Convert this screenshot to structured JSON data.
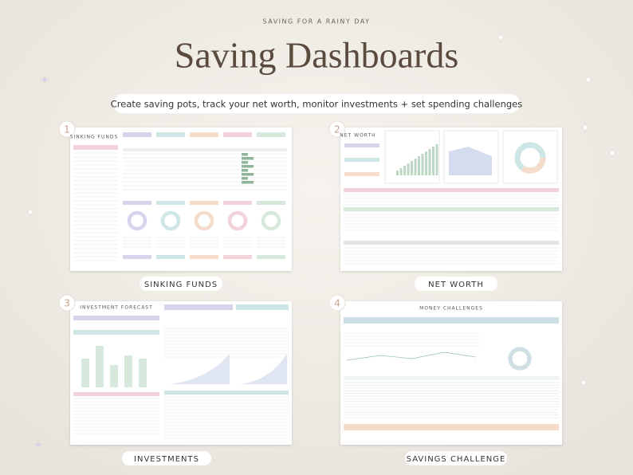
{
  "header": {
    "eyebrow": "SAVING FOR A RAINY DAY",
    "title": "Saving Dashboards",
    "subtitle": "Create saving pots, track your net worth, monitor investments + set spending challenges"
  },
  "panels": [
    {
      "number": "1",
      "label": "SINKING FUNDS",
      "sheet_title": "SINKING FUNDS"
    },
    {
      "number": "2",
      "label": "NET WORTH",
      "sheet_title": "NET WORTH"
    },
    {
      "number": "3",
      "label": "INVESTMENTS",
      "sheet_title": "INVESTMENT FORECAST"
    },
    {
      "number": "4",
      "label": "SAVINGS CHALLENGE",
      "sheet_title": "MONEY CHALLENGES"
    }
  ]
}
